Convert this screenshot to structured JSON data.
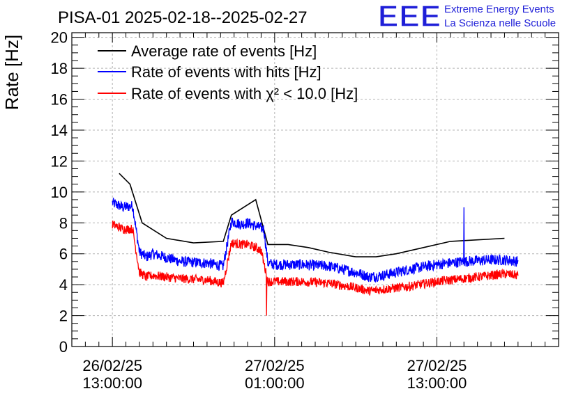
{
  "header": {
    "title": "PISA-01 2025-02-18--2025-02-27",
    "logo_text": "EEE",
    "org_line1": "Extreme Energy Events",
    "org_line2": "La Scienza nelle Scuole"
  },
  "colors": {
    "logo": "#1f1fd8",
    "average": "#000000",
    "hits": "#0000ff",
    "chi2": "#ff0000",
    "grid": "#b4b4b4"
  },
  "chart_data": {
    "type": "line",
    "ylabel": "Rate [Hz]",
    "ylim": [
      0,
      20.3
    ],
    "yticks": [
      0,
      2,
      4,
      6,
      8,
      10,
      12,
      14,
      16,
      18,
      20
    ],
    "xlim": [
      "26/02/25 10:00:00",
      "27/02/25 22:00:00"
    ],
    "xticks": [
      {
        "date": "26/02/25",
        "time": "13:00:00",
        "hours": 3
      },
      {
        "date": "27/02/25",
        "time": "01:00:00",
        "hours": 15
      },
      {
        "date": "27/02/25",
        "time": "13:00:00",
        "hours": 27
      }
    ],
    "grid": true,
    "legend_position": "top-left",
    "series": [
      {
        "name": "Average rate of events [Hz]",
        "key": "average",
        "x": [
          3.5,
          4.3,
          5.2,
          7.0,
          9.0,
          11.2,
          11.8,
          13.6,
          14.5,
          16.0,
          17.5,
          19.0,
          21.0,
          22.5,
          24.0,
          26.0,
          28.0,
          30.0,
          32.0
        ],
        "y": [
          11.2,
          10.5,
          8.0,
          7.0,
          6.7,
          6.8,
          8.5,
          9.5,
          6.6,
          6.6,
          6.4,
          6.1,
          5.8,
          5.8,
          6.0,
          6.4,
          6.8,
          6.9,
          7.0
        ]
      },
      {
        "name": "Rate of events with hits [Hz]",
        "key": "hits",
        "x": [
          3.0,
          3.8,
          4.5,
          5.0,
          5.5,
          6.0,
          8.0,
          10.0,
          11.2,
          11.8,
          12.5,
          13.0,
          13.6,
          14.2,
          14.5,
          15.0,
          17.0,
          19.0,
          21.0,
          22.0,
          23.0,
          25.0,
          27.0,
          29.0,
          31.0,
          32.0,
          33.0
        ],
        "y": [
          9.3,
          9.0,
          9.1,
          6.1,
          5.8,
          6.0,
          5.5,
          5.4,
          5.2,
          8.1,
          7.9,
          8.0,
          7.8,
          7.6,
          5.4,
          5.3,
          5.3,
          5.2,
          4.8,
          4.5,
          4.6,
          5.0,
          5.3,
          5.5,
          5.6,
          5.6,
          5.5
        ],
        "spikes": [
          {
            "x": 29.0,
            "y": 9.0
          }
        ],
        "noise": 0.35
      },
      {
        "name": "Rate of events with χ² < 10.0 [Hz]",
        "key": "chi2",
        "x": [
          3.0,
          3.8,
          4.5,
          5.0,
          5.5,
          6.0,
          8.0,
          10.0,
          11.2,
          11.8,
          12.5,
          13.0,
          13.6,
          14.0,
          14.5,
          15.0,
          17.0,
          19.0,
          21.0,
          22.0,
          23.0,
          25.0,
          27.0,
          29.0,
          31.0,
          32.0,
          33.0
        ],
        "y": [
          7.9,
          7.6,
          7.6,
          4.8,
          4.5,
          4.6,
          4.4,
          4.3,
          4.1,
          6.7,
          6.6,
          6.6,
          6.4,
          6.2,
          4.2,
          4.2,
          4.2,
          4.1,
          3.8,
          3.6,
          3.7,
          3.9,
          4.2,
          4.4,
          4.6,
          4.7,
          4.6
        ],
        "spikes": [
          {
            "x": 14.4,
            "y": 2.0
          }
        ],
        "noise": 0.3
      }
    ]
  }
}
